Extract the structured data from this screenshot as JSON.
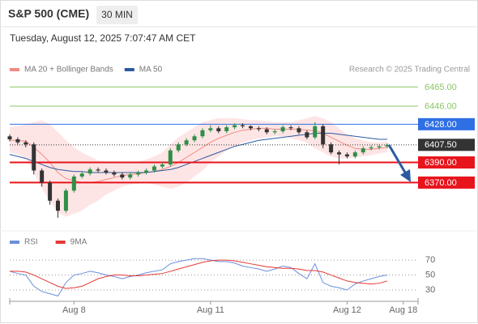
{
  "header": {
    "title": "S&P 500 (CME)",
    "interval": "30 MIN",
    "datetime": "Tuesday, August 12, 2025 7:07:47 AM CET"
  },
  "chart_data": [
    {
      "type": "candlestick",
      "legend": [
        {
          "name": "MA 20 + Bollinger Bands",
          "color": "#f28b82"
        },
        {
          "name": "MA 50",
          "color": "#2c5aa0"
        }
      ],
      "annotation": "Research © 2025 Trading Central",
      "ylim": [
        6322,
        6475
      ],
      "xlim": [
        -0.5,
        51
      ],
      "xticks": [
        {
          "value": 8,
          "label": "Aug 8"
        },
        {
          "value": 25,
          "label": "Aug 11"
        },
        {
          "value": 42,
          "label": "Aug 12"
        },
        {
          "value": 49,
          "label": "Aug 18"
        }
      ],
      "up_color": "#2f8f46",
      "down_color": "#333333",
      "open": [
        6416,
        6413,
        6410,
        6408,
        6382,
        6370,
        6352,
        6342,
        6362,
        6376,
        6379,
        6383,
        6382,
        6380,
        6378,
        6375,
        6378,
        6380,
        6382,
        6386,
        6388,
        6402,
        6408,
        6412,
        6416,
        6422,
        6424,
        6421,
        6425,
        6427,
        6426,
        6424,
        6423,
        6420,
        6421,
        6425,
        6424,
        6420,
        6415,
        6426,
        6408,
        6400,
        6398,
        6396,
        6400,
        6404,
        6405,
        6406
      ],
      "high": [
        6418,
        6415,
        6412,
        6410,
        6384,
        6372,
        6354,
        6364,
        6378,
        6381,
        6385,
        6385,
        6384,
        6382,
        6380,
        6380,
        6382,
        6384,
        6388,
        6390,
        6404,
        6410,
        6414,
        6418,
        6424,
        6427,
        6426,
        6427,
        6429,
        6429,
        6427,
        6426,
        6425,
        6423,
        6427,
        6427,
        6426,
        6422,
        6430,
        6428,
        6410,
        6402,
        6400,
        6402,
        6406,
        6407,
        6408,
        6409
      ],
      "low": [
        6411,
        6408,
        6405,
        6378,
        6366,
        6348,
        6335,
        6340,
        6360,
        6374,
        6377,
        6380,
        6378,
        6376,
        6373,
        6373,
        6376,
        6378,
        6380,
        6384,
        6386,
        6400,
        6406,
        6410,
        6414,
        6420,
        6419,
        6419,
        6423,
        6424,
        6422,
        6421,
        6418,
        6418,
        6419,
        6422,
        6418,
        6413,
        6413,
        6404,
        6398,
        6388,
        6394,
        6394,
        6398,
        6402,
        6403,
        6404
      ],
      "close": [
        6413,
        6410,
        6408,
        6382,
        6370,
        6352,
        6342,
        6362,
        6376,
        6379,
        6383,
        6382,
        6380,
        6378,
        6375,
        6378,
        6380,
        6382,
        6386,
        6388,
        6402,
        6408,
        6412,
        6416,
        6422,
        6424,
        6421,
        6425,
        6427,
        6426,
        6424,
        6423,
        6420,
        6421,
        6425,
        6424,
        6420,
        6415,
        6426,
        6408,
        6400,
        6398,
        6396,
        6400,
        6404,
        6405,
        6406,
        6407.5
      ],
      "ma20": [
        6412,
        6412,
        6411,
        6405,
        6398,
        6390,
        6380,
        6374,
        6372,
        6370,
        6370,
        6371,
        6373,
        6375,
        6377,
        6378,
        6379,
        6380,
        6381,
        6383,
        6386,
        6390,
        6395,
        6400,
        6405,
        6410,
        6414,
        6417,
        6420,
        6422,
        6423,
        6424,
        6424,
        6423,
        6423,
        6423,
        6423,
        6422,
        6422,
        6419,
        6415,
        6411,
        6407,
        6404,
        6403,
        6403,
        6404,
        6405
      ],
      "bb_upper": [
        6425,
        6426,
        6428,
        6430,
        6432,
        6428,
        6420,
        6412,
        6405,
        6400,
        6396,
        6392,
        6390,
        6390,
        6390,
        6390,
        6391,
        6393,
        6396,
        6400,
        6408,
        6415,
        6420,
        6425,
        6430,
        6432,
        6434,
        6434,
        6434,
        6433,
        6432,
        6432,
        6431,
        6430,
        6430,
        6430,
        6432,
        6434,
        6436,
        6434,
        6430,
        6424,
        6418,
        6414,
        6412,
        6410,
        6410,
        6411
      ],
      "bb_lower": [
        6400,
        6398,
        6394,
        6380,
        6364,
        6352,
        6340,
        6336,
        6339,
        6342,
        6348,
        6352,
        6358,
        6362,
        6366,
        6368,
        6369,
        6370,
        6368,
        6366,
        6364,
        6366,
        6370,
        6376,
        6382,
        6390,
        6396,
        6402,
        6406,
        6410,
        6412,
        6414,
        6415,
        6416,
        6416,
        6414,
        6412,
        6410,
        6404,
        6400,
        6396,
        6394,
        6394,
        6395,
        6396,
        6397,
        6399,
        6400
      ],
      "ma50": [
        6398,
        6396,
        6394,
        6391,
        6388,
        6385,
        6383,
        6382,
        6381,
        6381,
        6380,
        6380,
        6380,
        6380,
        6380,
        6380,
        6380,
        6380,
        6381,
        6382,
        6383,
        6385,
        6388,
        6391,
        6394,
        6397,
        6400,
        6403,
        6406,
        6408,
        6410,
        6412,
        6413,
        6414,
        6415,
        6416,
        6417,
        6418,
        6419,
        6419,
        6419,
        6418,
        6417,
        6416,
        6415,
        6414,
        6413,
        6413
      ],
      "levels": [
        {
          "value": 6465,
          "label": "6465.00",
          "color": "#8cc665",
          "box": false
        },
        {
          "value": 6446,
          "label": "6446.00",
          "color": "#8cc665",
          "box": false
        },
        {
          "value": 6428,
          "label": "6428.00",
          "color": "#2f6fe4",
          "box": true
        },
        {
          "value": 6407.5,
          "label": "6407.50",
          "color": "#333333",
          "box": true
        },
        {
          "value": 6390,
          "label": "6390.00",
          "color": "#e8141c",
          "box": true
        },
        {
          "value": 6370,
          "label": "6370.00",
          "color": "#e8141c",
          "box": true
        }
      ]
    },
    {
      "type": "line",
      "ylim": [
        17,
        82
      ],
      "yticks": [
        70,
        50,
        30
      ],
      "series": [
        {
          "name": "RSI",
          "color": "#6a8fdc",
          "values": [
            55,
            52,
            50,
            35,
            28,
            25,
            22,
            40,
            50,
            52,
            55,
            53,
            50,
            48,
            45,
            48,
            50,
            53,
            55,
            57,
            65,
            68,
            70,
            72,
            72,
            70,
            68,
            68,
            66,
            62,
            60,
            58,
            55,
            58,
            62,
            60,
            52,
            45,
            65,
            40,
            35,
            33,
            30,
            38,
            42,
            45,
            48,
            50
          ]
        },
        {
          "name": "9MA",
          "color": "#e53935",
          "values": [
            55,
            55,
            54,
            50,
            45,
            40,
            35,
            32,
            33,
            35,
            40,
            45,
            48,
            50,
            50,
            49,
            49,
            50,
            51,
            52,
            55,
            58,
            61,
            64,
            67,
            69,
            70,
            70,
            69,
            67,
            65,
            63,
            61,
            60,
            59,
            59,
            58,
            56,
            56,
            54,
            50,
            46,
            42,
            40,
            39,
            38,
            39,
            42
          ]
        }
      ]
    }
  ]
}
